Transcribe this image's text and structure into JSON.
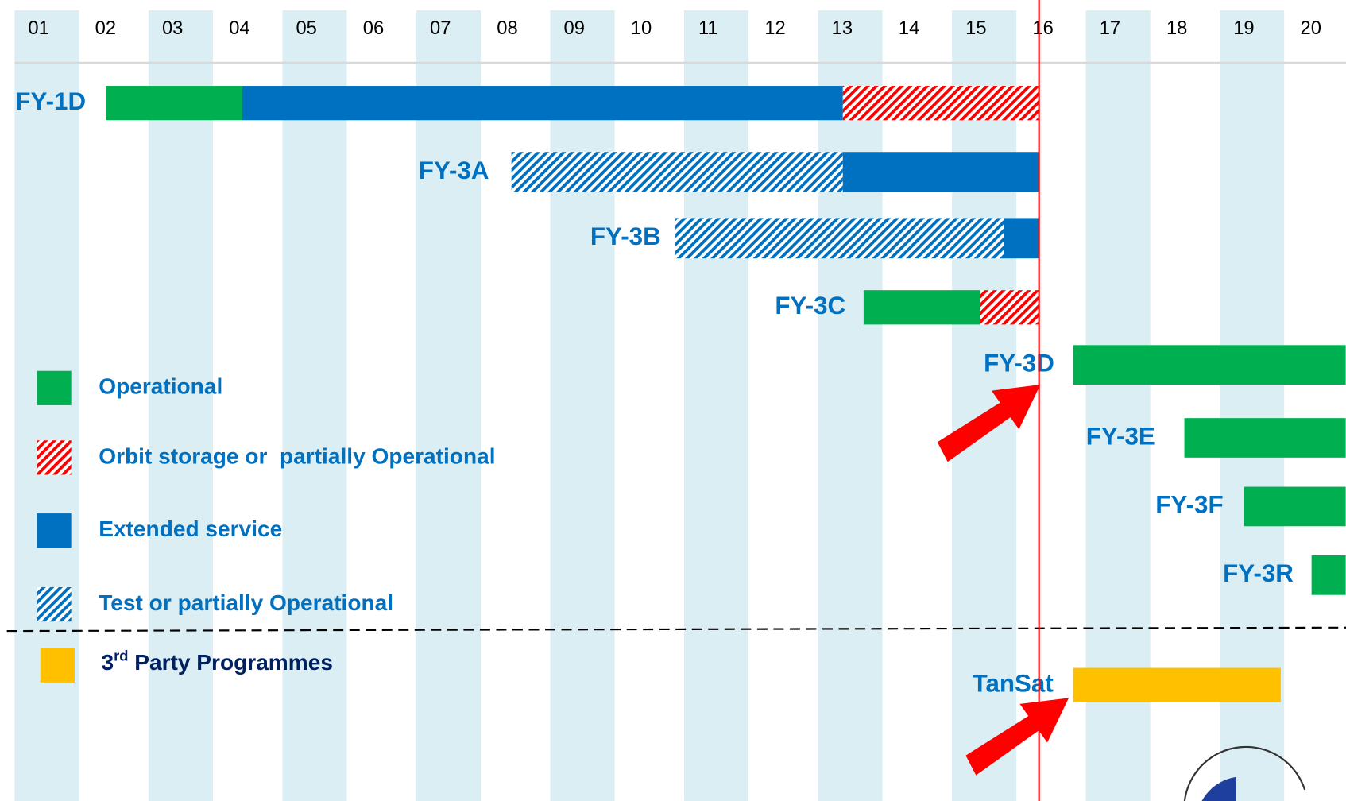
{
  "timeline": {
    "years": [
      "01",
      "02",
      "03",
      "04",
      "05",
      "06",
      "07",
      "08",
      "09",
      "10",
      "11",
      "12",
      "13",
      "14",
      "15",
      "16",
      "17",
      "18",
      "19",
      "20"
    ],
    "first_year": 2001,
    "now": 2016.3,
    "legend": [
      {
        "label": "Operational",
        "color": "#00b050",
        "hatch": false
      },
      {
        "label": "Orbit storage or  partially Operational",
        "color": "#ff0000",
        "hatch": true
      },
      {
        "label": "Extended service",
        "color": "#0070c0",
        "hatch": false
      },
      {
        "label": "Test or partially Operational",
        "color": "#0070c0",
        "hatch": true
      }
    ],
    "third_party": {
      "label_main": "3",
      "label_sup": "rd",
      "label_rest": " Party Programmes",
      "color": "#ffc000"
    },
    "satellites": [
      {
        "name": "FY-1D",
        "segments": [
          {
            "kind": "Operational",
            "start": 2002.36,
            "end": 2004.4
          },
          {
            "kind": "Extended service",
            "start": 2004.4,
            "end": 2013.37
          },
          {
            "kind": "Orbit storage or  partially Operational",
            "start": 2013.37,
            "end": 2016.3
          }
        ]
      },
      {
        "name": "FY-3A",
        "segments": [
          {
            "kind": "Test or partially Operational",
            "start": 2008.42,
            "end": 2013.37
          },
          {
            "kind": "Extended service",
            "start": 2013.37,
            "end": 2016.3
          }
        ]
      },
      {
        "name": "FY-3B",
        "segments": [
          {
            "kind": "Test or partially Operational",
            "start": 2010.87,
            "end": 2015.78
          },
          {
            "kind": "Extended service",
            "start": 2015.78,
            "end": 2016.3
          }
        ]
      },
      {
        "name": "FY-3C",
        "segments": [
          {
            "kind": "Operational",
            "start": 2013.68,
            "end": 2015.42
          },
          {
            "kind": "Orbit storage or  partially Operational",
            "start": 2015.42,
            "end": 2016.3
          }
        ]
      },
      {
        "name": "FY-3D",
        "segments": [
          {
            "kind": "Operational",
            "start": 2016.81,
            "end": 2020.88
          }
        ]
      },
      {
        "name": "FY-3E",
        "segments": [
          {
            "kind": "Operational",
            "start": 2018.47,
            "end": 2020.88
          }
        ]
      },
      {
        "name": "FY-3F",
        "segments": [
          {
            "kind": "Operational",
            "start": 2019.36,
            "end": 2020.88
          }
        ]
      },
      {
        "name": "FY-3R",
        "segments": [
          {
            "kind": "Operational",
            "start": 2020.37,
            "end": 2020.88
          }
        ]
      },
      {
        "name": "TanSat",
        "third_party": true,
        "segments": [
          {
            "start": 2016.81,
            "end": 2019.91
          }
        ]
      }
    ]
  }
}
